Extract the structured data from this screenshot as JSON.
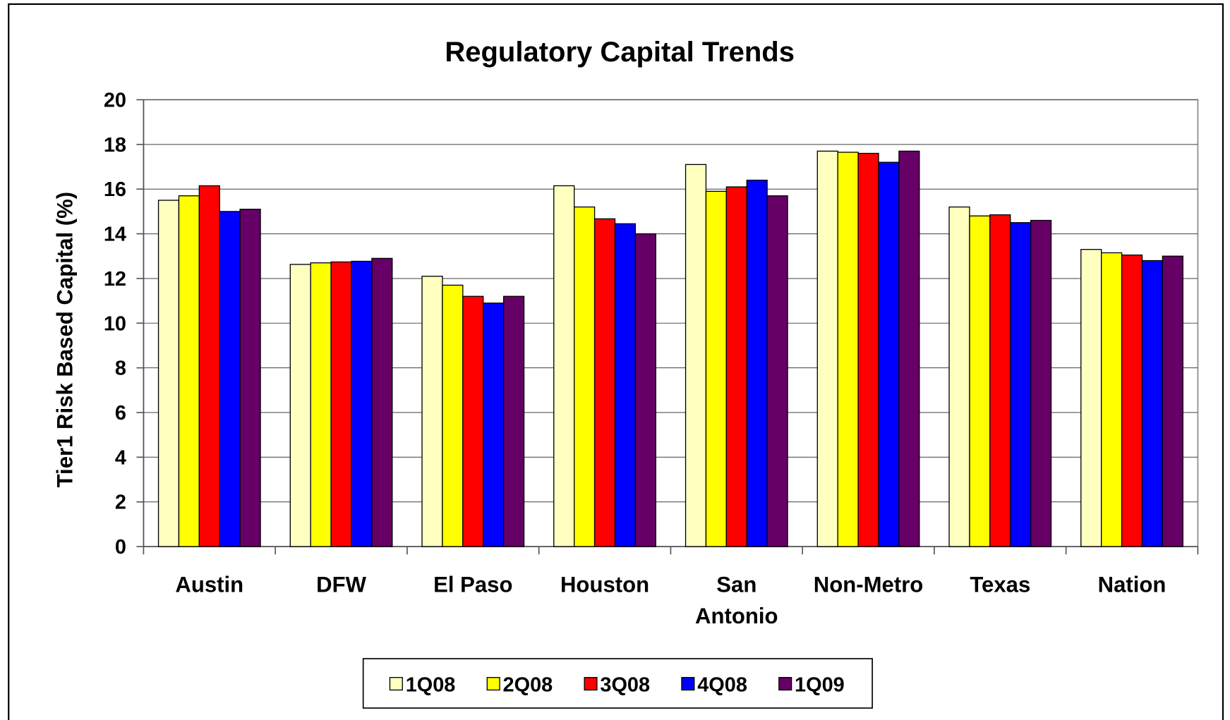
{
  "chart_data": {
    "type": "bar",
    "title": "Regulatory Capital Trends",
    "y_label": "Tier1 Risk Based Capital (%)",
    "categories": [
      "Austin",
      "DFW",
      "El Paso",
      "Houston",
      "San Antonio",
      "Non-Metro",
      "Texas",
      "Nation"
    ],
    "series": [
      {
        "name": "1Q08",
        "color": "#ffffc0",
        "values": [
          15.5,
          12.63,
          12.1,
          16.15,
          17.1,
          17.7,
          15.2,
          13.3
        ]
      },
      {
        "name": "2Q08",
        "color": "#ffff00",
        "values": [
          15.7,
          12.7,
          11.7,
          15.2,
          15.9,
          17.65,
          14.8,
          13.15
        ]
      },
      {
        "name": "3Q08",
        "color": "#ff0000",
        "values": [
          16.15,
          12.74,
          11.2,
          14.67,
          16.1,
          17.6,
          14.85,
          13.05
        ]
      },
      {
        "name": "4Q08",
        "color": "#0000ff",
        "values": [
          15.0,
          12.77,
          10.9,
          14.45,
          16.4,
          17.2,
          14.5,
          12.8
        ]
      },
      {
        "name": "1Q09",
        "color": "#660066",
        "values": [
          15.1,
          12.9,
          11.2,
          14.0,
          15.7,
          17.7,
          14.6,
          13.0
        ]
      }
    ],
    "ylim": [
      0,
      20
    ],
    "yticks": [
      0,
      2,
      4,
      6,
      8,
      10,
      12,
      14,
      16,
      18,
      20
    ],
    "grid": true,
    "legend": "bottom"
  }
}
